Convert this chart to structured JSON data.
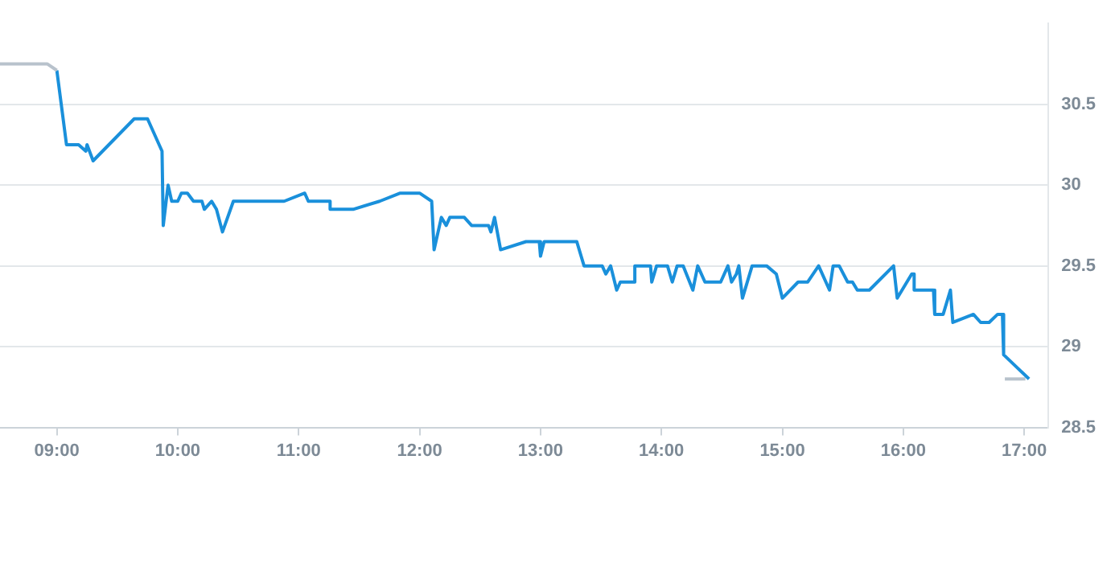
{
  "chart_data": {
    "type": "line",
    "xlim": [
      8.53,
      17.2
    ],
    "ylim": [
      28.5,
      31
    ],
    "xticks": [
      {
        "value": 9,
        "label": "09:00"
      },
      {
        "value": 10,
        "label": "10:00"
      },
      {
        "value": 11,
        "label": "11:00"
      },
      {
        "value": 12,
        "label": "12:00"
      },
      {
        "value": 13,
        "label": "13:00"
      },
      {
        "value": 14,
        "label": "14:00"
      },
      {
        "value": 15,
        "label": "15:00"
      },
      {
        "value": 16,
        "label": "16:00"
      },
      {
        "value": 17,
        "label": "17:00"
      }
    ],
    "yticks": [
      28.5,
      29,
      29.5,
      30,
      30.5
    ],
    "grid": "y",
    "legend": false,
    "marker": "none",
    "line_style": "solid",
    "series": [
      {
        "color": "#b8c2cc",
        "x": [
          8.53,
          8.92,
          9.0
        ],
        "values": [
          30.75,
          30.75,
          30.71
        ]
      },
      {
        "color": "#1a90db",
        "x": [
          9.0,
          9.08,
          9.18,
          9.24,
          9.25,
          9.3,
          9.64,
          9.75,
          9.87,
          9.88,
          9.92,
          9.95,
          10.0,
          10.03,
          10.08,
          10.13,
          10.2,
          10.22,
          10.28,
          10.32,
          10.37,
          10.46,
          10.88,
          11.05,
          11.08,
          11.26,
          11.26,
          11.45,
          11.67,
          11.84,
          12.0,
          12.1,
          12.12,
          12.18,
          12.22,
          12.25,
          12.37,
          12.43,
          12.57,
          12.59,
          12.62,
          12.67,
          12.88,
          12.99,
          13.0,
          13.03,
          13.3,
          13.36,
          13.51,
          13.54,
          13.58,
          13.63,
          13.66,
          13.78,
          13.78,
          13.91,
          13.92,
          13.96,
          14.05,
          14.09,
          14.13,
          14.18,
          14.26,
          14.3,
          14.36,
          14.49,
          14.55,
          14.58,
          14.62,
          14.64,
          14.67,
          14.75,
          14.87,
          14.95,
          15.0,
          15.13,
          15.21,
          15.3,
          15.39,
          15.42,
          15.47,
          15.54,
          15.58,
          15.62,
          15.72,
          15.92,
          15.95,
          16.07,
          16.09,
          16.09,
          16.25,
          16.26,
          16.33,
          16.39,
          16.41,
          16.58,
          16.64,
          16.71,
          16.78,
          16.82,
          16.83,
          17.04
        ],
        "values": [
          30.71,
          30.25,
          30.25,
          30.21,
          30.25,
          30.15,
          30.41,
          30.41,
          30.21,
          29.75,
          30.0,
          29.9,
          29.9,
          29.95,
          29.95,
          29.9,
          29.9,
          29.85,
          29.9,
          29.85,
          29.71,
          29.9,
          29.9,
          29.95,
          29.9,
          29.9,
          29.85,
          29.85,
          29.9,
          29.95,
          29.95,
          29.9,
          29.6,
          29.8,
          29.75,
          29.8,
          29.8,
          29.75,
          29.75,
          29.71,
          29.8,
          29.6,
          29.65,
          29.65,
          29.56,
          29.65,
          29.65,
          29.5,
          29.5,
          29.45,
          29.5,
          29.35,
          29.4,
          29.4,
          29.5,
          29.5,
          29.4,
          29.5,
          29.5,
          29.4,
          29.5,
          29.5,
          29.35,
          29.5,
          29.4,
          29.4,
          29.5,
          29.4,
          29.45,
          29.5,
          29.3,
          29.5,
          29.5,
          29.45,
          29.3,
          29.4,
          29.4,
          29.5,
          29.35,
          29.5,
          29.5,
          29.4,
          29.4,
          29.35,
          29.35,
          29.5,
          29.3,
          29.45,
          29.45,
          29.35,
          29.35,
          29.2,
          29.2,
          29.35,
          29.15,
          29.2,
          29.15,
          29.15,
          29.2,
          29.2,
          28.95,
          28.8
        ]
      },
      {
        "color": "#b8c2cc",
        "x": [
          16.84,
          17.01
        ],
        "values": [
          28.8,
          28.8
        ]
      }
    ]
  }
}
